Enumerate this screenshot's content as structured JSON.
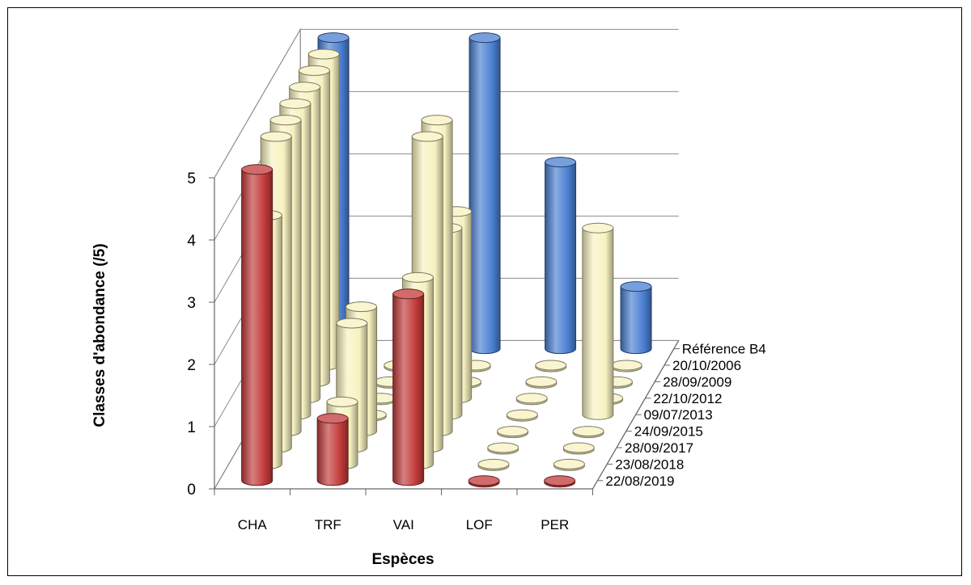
{
  "chart_data": {
    "type": "bar",
    "subtype": "3d-cylinder",
    "xlabel": "Espèces",
    "ylabel": "Classes d'abondance  (/5)",
    "ylim": [
      0,
      5
    ],
    "yticks": [
      "0",
      "1",
      "2",
      "3",
      "4",
      "5"
    ],
    "categories": [
      "CHA",
      "TRF",
      "VAI",
      "LOF",
      "PER"
    ],
    "series": [
      {
        "name": "Référence B4",
        "color": "#4a7fd1",
        "values": [
          5,
          0,
          5,
          3,
          1
        ]
      },
      {
        "name": "20/10/2006",
        "color": "#f7f2c0",
        "values": [
          5,
          0,
          0,
          0,
          0
        ]
      },
      {
        "name": "28/09/2009",
        "color": "#f7f2c0",
        "values": [
          5,
          0,
          0,
          0,
          0
        ]
      },
      {
        "name": "22/10/2012",
        "color": "#f7f2c0",
        "values": [
          5,
          0,
          3,
          0,
          0
        ]
      },
      {
        "name": "09/07/2013",
        "color": "#f7f2c0",
        "values": [
          5,
          0,
          3,
          0,
          3
        ]
      },
      {
        "name": "24/09/2015",
        "color": "#f7f2c0",
        "values": [
          5,
          2,
          5,
          0,
          0
        ]
      },
      {
        "name": "28/09/2017",
        "color": "#f7f2c0",
        "values": [
          5,
          2,
          5,
          0,
          0
        ]
      },
      {
        "name": "23/08/2018",
        "color": "#f7f2c0",
        "values": [
          4,
          1,
          3,
          0,
          0
        ]
      },
      {
        "name": "22/08/2019",
        "color": "#c23a3a",
        "values": [
          5,
          1,
          3,
          0,
          0
        ]
      }
    ]
  }
}
